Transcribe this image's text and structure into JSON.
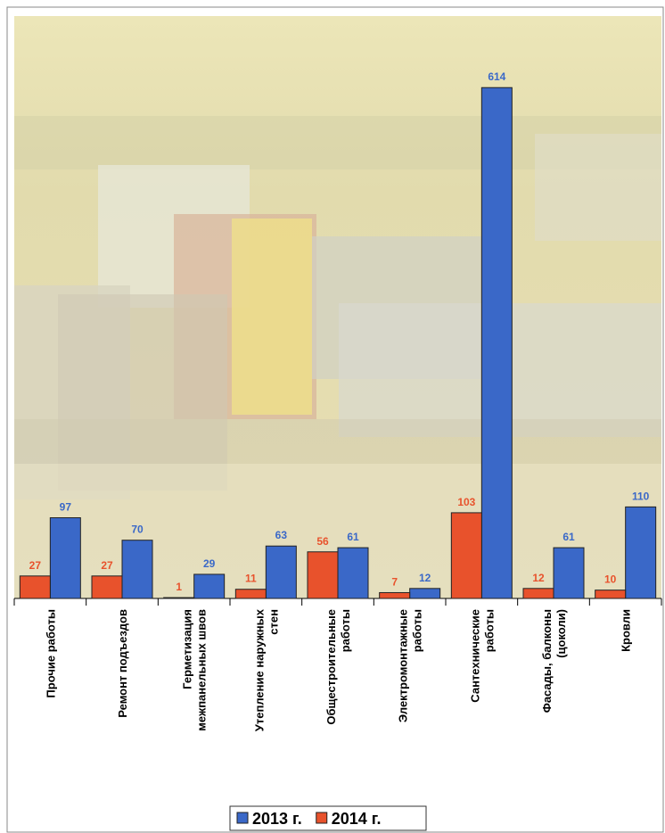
{
  "chart_data": {
    "type": "bar",
    "categories": [
      "Прочие работы",
      "Ремонт подъездов",
      "Герметизация межпанельных швов",
      "Утепление наружных стен",
      "Общестроительные работы",
      "Электромонтажные работы",
      "Сантехнические работы",
      "Фасады, балконы (цоколи)",
      "Кровли"
    ],
    "series": [
      {
        "name": "2013 г.",
        "color": "#3a68c8",
        "values": [
          97,
          70,
          29,
          63,
          61,
          12,
          614,
          61,
          110
        ]
      },
      {
        "name": "2014 г.",
        "color": "#e8522c",
        "values": [
          27,
          27,
          1,
          11,
          56,
          7,
          103,
          12,
          10
        ]
      }
    ],
    "ylim": [
      0,
      700
    ]
  }
}
